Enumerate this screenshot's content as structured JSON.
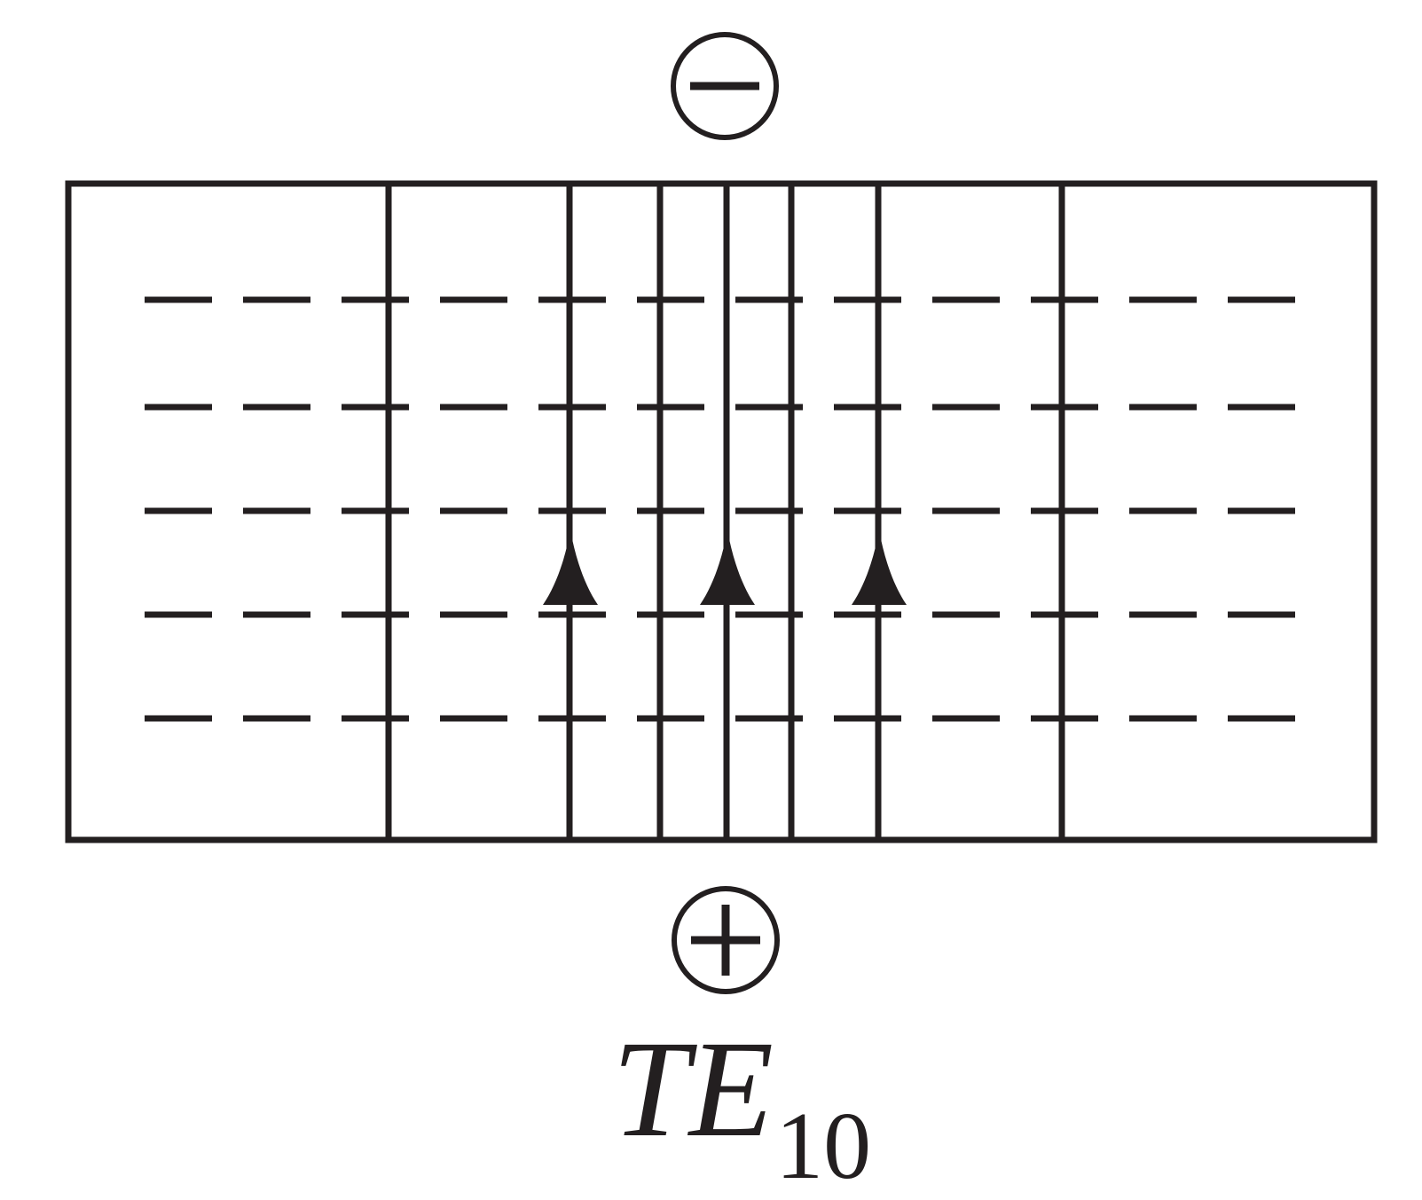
{
  "diagram": {
    "mode": {
      "name": "TE",
      "subscript": "10"
    },
    "top_charge": {
      "sign": "minus",
      "symbol": "⊖"
    },
    "bottom_charge": {
      "sign": "plus",
      "symbol": "⊕"
    },
    "field_lines": {
      "e_field_direction": "up",
      "h_field_style": "dashed",
      "solid_line_count": 9,
      "arrow_count": 3,
      "dash_rows": 5,
      "dashes_per_row": 12
    },
    "colors": {
      "stroke": "#231f20",
      "background": "#ffffff"
    }
  }
}
